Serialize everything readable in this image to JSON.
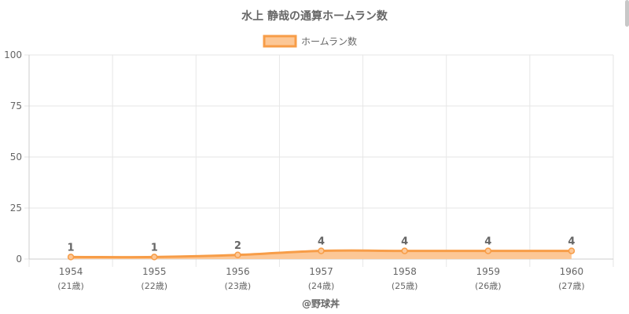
{
  "chart_data": {
    "type": "area",
    "title": "水上 静哉の通算ホームラン数",
    "legend": {
      "label": "ホームラン数",
      "placement": "top-center"
    },
    "categories": [
      "1954",
      "1955",
      "1956",
      "1957",
      "1958",
      "1959",
      "1960"
    ],
    "category_sublabels": [
      "(21歳)",
      "(22歳)",
      "(23歳)",
      "(24歳)",
      "(25歳)",
      "(26歳)",
      "(27歳)"
    ],
    "series": [
      {
        "name": "ホームラン数",
        "values": [
          1,
          1,
          2,
          4,
          4,
          4,
          4
        ]
      }
    ],
    "data_labels": [
      "1",
      "1",
      "2",
      "4",
      "4",
      "4",
      "4"
    ],
    "yticks": [
      "0",
      "25",
      "50",
      "75",
      "100"
    ],
    "ylim": [
      0,
      100
    ],
    "grid": true,
    "xlabel": "@野球丼",
    "ylabel": "",
    "colors": {
      "line": "#f79d48",
      "fill": "#fcc796",
      "grid": "#e6e6e6",
      "axis": "#cccccc",
      "text": "#666666"
    }
  }
}
